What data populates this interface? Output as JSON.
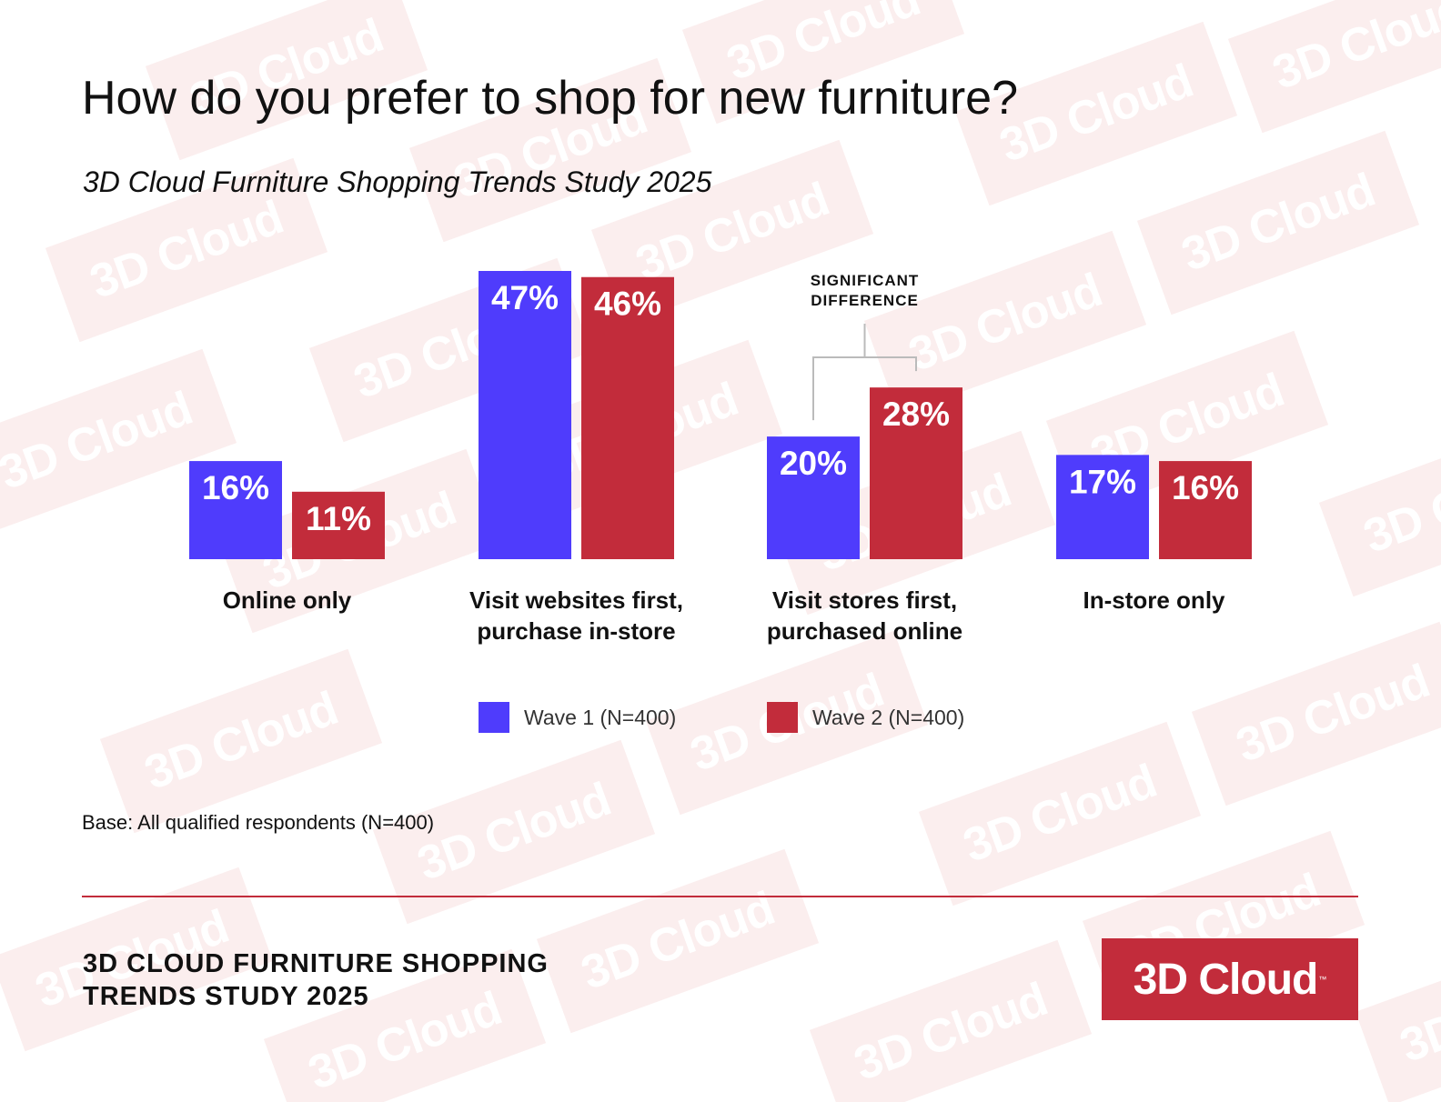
{
  "title": "How do you prefer to shop for new furniture?",
  "subtitle": "3D Cloud Furniture Shopping Trends Study 2025",
  "watermark_text": "3D Cloud",
  "annotation": {
    "line1": "SIGNIFICANT",
    "line2": "DIFFERENCE"
  },
  "base_note": "Base: All qualified respondents (N=400)",
  "footer": {
    "line1": "3D CLOUD FURNITURE SHOPPING",
    "line2": "TRENDS STUDY 2025"
  },
  "logo": {
    "text": "3D Cloud",
    "tm": "™"
  },
  "colors": {
    "wave1": "#4f3cfc",
    "wave2": "#c22c3b",
    "accent": "#c22c3b"
  },
  "chart_data": {
    "type": "bar",
    "categories": [
      [
        "Online only"
      ],
      [
        "Visit websites first,",
        "purchase in-store"
      ],
      [
        "Visit stores first,",
        "purchased online"
      ],
      [
        "In-store only"
      ]
    ],
    "series": [
      {
        "name": "Wave 1 (N=400)",
        "values": [
          16,
          47,
          20,
          17
        ],
        "labels": [
          "16%",
          "47%",
          "20%",
          "17%"
        ],
        "color": "#4f3cfc"
      },
      {
        "name": "Wave 2 (N=400)",
        "values": [
          11,
          46,
          28,
          16
        ],
        "labels": [
          "11%",
          "46%",
          "28%",
          "16%"
        ],
        "color": "#c22c3b"
      }
    ],
    "unit": "%",
    "ylim": [
      0,
      47
    ],
    "grid": false,
    "legend": "bottom-center",
    "significant_difference_category_index": 2
  }
}
